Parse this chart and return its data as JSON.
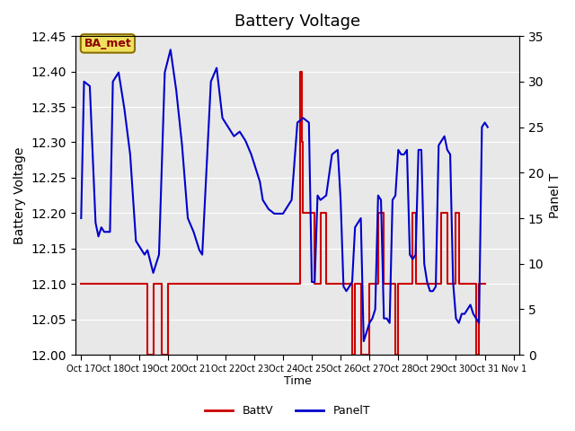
{
  "title": "Battery Voltage",
  "ylabel_left": "Battery Voltage",
  "ylabel_right": "Panel T",
  "xlabel": "Time",
  "ylim_left": [
    12.0,
    12.45
  ],
  "ylim_right": [
    0,
    35
  ],
  "background_color": "#ffffff",
  "plot_bg_color": "#e8e8e8",
  "legend_label_batt": "BattV",
  "legend_label_panel": "PanelT",
  "batt_color": "#cc0000",
  "panel_color": "#0000cc",
  "watermark_text": "BA_met",
  "watermark_bg": "#f0e060",
  "watermark_border": "#8b7000",
  "xtick_labels": [
    "Oct 17",
    "Oct 18",
    "Oct 19",
    "Oct 20",
    "Oct 21",
    "Oct 22",
    "Oct 23",
    "Oct 24",
    "Oct 25",
    "Oct 26",
    "Oct 27",
    "Oct 28",
    "Oct 29",
    "Oct 30",
    "Oct 31",
    "Nov 1"
  ],
  "batt_data": [
    [
      17.0,
      12.1
    ],
    [
      17.5,
      12.1
    ],
    [
      19.0,
      12.1
    ],
    [
      19.3,
      12.0
    ],
    [
      19.5,
      12.1
    ],
    [
      19.7,
      12.1
    ],
    [
      19.8,
      12.0
    ],
    [
      20.0,
      12.1
    ],
    [
      20.1,
      12.1
    ],
    [
      20.5,
      12.1
    ],
    [
      24.5,
      12.1
    ],
    [
      24.6,
      12.4
    ],
    [
      24.65,
      12.3
    ],
    [
      24.7,
      12.2
    ],
    [
      24.8,
      12.2
    ],
    [
      25.0,
      12.2
    ],
    [
      25.1,
      12.1
    ],
    [
      25.3,
      12.2
    ],
    [
      25.5,
      12.1
    ],
    [
      26.0,
      12.1
    ],
    [
      26.3,
      12.1
    ],
    [
      26.4,
      12.0
    ],
    [
      26.5,
      12.1
    ],
    [
      26.7,
      12.0
    ],
    [
      27.0,
      12.1
    ],
    [
      27.2,
      12.1
    ],
    [
      27.3,
      12.2
    ],
    [
      27.5,
      12.1
    ],
    [
      27.7,
      12.1
    ],
    [
      27.9,
      12.0
    ],
    [
      28.0,
      12.1
    ],
    [
      28.1,
      12.1
    ],
    [
      28.5,
      12.2
    ],
    [
      28.6,
      12.1
    ],
    [
      28.8,
      12.1
    ],
    [
      29.0,
      12.1
    ],
    [
      29.2,
      12.1
    ],
    [
      29.5,
      12.2
    ],
    [
      29.7,
      12.1
    ],
    [
      30.0,
      12.2
    ],
    [
      30.1,
      12.1
    ],
    [
      30.5,
      12.1
    ],
    [
      30.7,
      12.0
    ],
    [
      30.8,
      12.1
    ],
    [
      31.0,
      12.1
    ]
  ],
  "panel_data": [
    [
      17.0,
      15.0
    ],
    [
      17.1,
      30.0
    ],
    [
      17.3,
      29.5
    ],
    [
      17.5,
      14.5
    ],
    [
      17.6,
      13.0
    ],
    [
      17.7,
      14.0
    ],
    [
      17.8,
      13.5
    ],
    [
      18.0,
      13.5
    ],
    [
      18.1,
      30.0
    ],
    [
      18.3,
      31.0
    ],
    [
      18.5,
      27.0
    ],
    [
      18.7,
      22.0
    ],
    [
      18.9,
      12.5
    ],
    [
      19.0,
      12.0
    ],
    [
      19.2,
      11.0
    ],
    [
      19.3,
      11.5
    ],
    [
      19.5,
      9.0
    ],
    [
      19.7,
      11.0
    ],
    [
      19.9,
      31.0
    ],
    [
      20.1,
      33.5
    ],
    [
      20.3,
      29.0
    ],
    [
      20.5,
      23.0
    ],
    [
      20.7,
      15.0
    ],
    [
      20.9,
      13.5
    ],
    [
      21.1,
      11.5
    ],
    [
      21.2,
      11.0
    ],
    [
      21.5,
      30.0
    ],
    [
      21.7,
      31.5
    ],
    [
      21.9,
      26.0
    ],
    [
      22.1,
      25.0
    ],
    [
      22.3,
      24.0
    ],
    [
      22.5,
      24.5
    ],
    [
      22.7,
      23.5
    ],
    [
      22.9,
      22.0
    ],
    [
      23.1,
      20.0
    ],
    [
      23.2,
      19.0
    ],
    [
      23.3,
      17.0
    ],
    [
      23.5,
      16.0
    ],
    [
      23.7,
      15.5
    ],
    [
      23.9,
      15.5
    ],
    [
      24.0,
      15.5
    ],
    [
      24.1,
      16.0
    ],
    [
      24.3,
      17.0
    ],
    [
      24.5,
      25.5
    ],
    [
      24.7,
      26.0
    ],
    [
      24.9,
      25.5
    ],
    [
      25.0,
      8.0
    ],
    [
      25.1,
      8.0
    ],
    [
      25.2,
      17.5
    ],
    [
      25.3,
      17.0
    ],
    [
      25.5,
      17.5
    ],
    [
      25.7,
      22.0
    ],
    [
      25.9,
      22.5
    ],
    [
      26.0,
      17.0
    ],
    [
      26.1,
      7.5
    ],
    [
      26.2,
      7.0
    ],
    [
      26.3,
      7.5
    ],
    [
      26.4,
      8.0
    ],
    [
      26.5,
      14.0
    ],
    [
      26.6,
      14.5
    ],
    [
      26.7,
      15.0
    ],
    [
      26.8,
      1.5
    ],
    [
      26.9,
      2.5
    ],
    [
      27.0,
      3.5
    ],
    [
      27.1,
      4.0
    ],
    [
      27.2,
      5.0
    ],
    [
      27.3,
      17.5
    ],
    [
      27.4,
      17.0
    ],
    [
      27.5,
      4.0
    ],
    [
      27.6,
      4.0
    ],
    [
      27.7,
      3.5
    ],
    [
      27.8,
      17.0
    ],
    [
      27.9,
      17.5
    ],
    [
      28.0,
      22.5
    ],
    [
      28.1,
      22.0
    ],
    [
      28.2,
      22.0
    ],
    [
      28.3,
      22.5
    ],
    [
      28.4,
      11.0
    ],
    [
      28.5,
      10.5
    ],
    [
      28.6,
      11.0
    ],
    [
      28.7,
      22.5
    ],
    [
      28.8,
      22.5
    ],
    [
      28.9,
      10.0
    ],
    [
      29.0,
      8.0
    ],
    [
      29.1,
      7.0
    ],
    [
      29.2,
      7.0
    ],
    [
      29.3,
      7.5
    ],
    [
      29.4,
      23.0
    ],
    [
      29.5,
      23.5
    ],
    [
      29.6,
      24.0
    ],
    [
      29.7,
      22.5
    ],
    [
      29.8,
      22.0
    ],
    [
      29.9,
      8.0
    ],
    [
      30.0,
      4.0
    ],
    [
      30.1,
      3.5
    ],
    [
      30.2,
      4.5
    ],
    [
      30.3,
      4.5
    ],
    [
      30.4,
      5.0
    ],
    [
      30.5,
      5.5
    ],
    [
      30.6,
      4.5
    ],
    [
      30.7,
      4.0
    ],
    [
      30.8,
      3.5
    ],
    [
      30.9,
      25.0
    ],
    [
      31.0,
      25.5
    ],
    [
      31.1,
      25.0
    ]
  ]
}
